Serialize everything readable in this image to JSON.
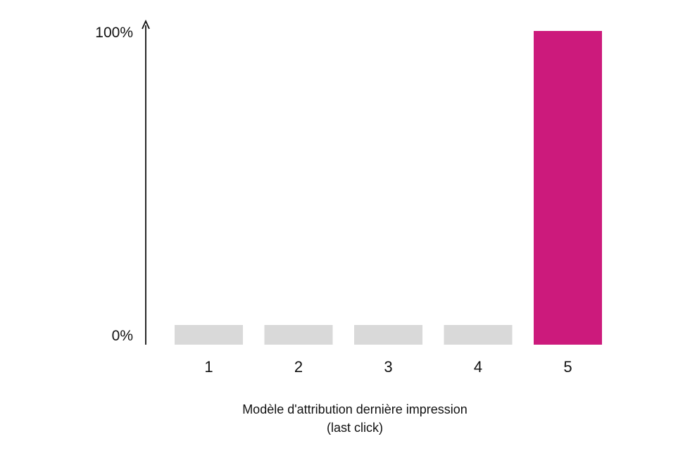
{
  "chart_data": {
    "type": "bar",
    "categories": [
      "1",
      "2",
      "3",
      "4",
      "5"
    ],
    "values": [
      0,
      0,
      0,
      0,
      100
    ],
    "ylim": [
      0,
      100
    ],
    "y_ticks": [
      "0%",
      "100%"
    ],
    "xlabel": "Modèle d'attribution dernière impression",
    "xlabel_sub": "(last click)",
    "grid": false,
    "colors": {
      "highlight": "#cc1a7c",
      "muted": "#d9d9d9",
      "axis": "#111111"
    }
  }
}
